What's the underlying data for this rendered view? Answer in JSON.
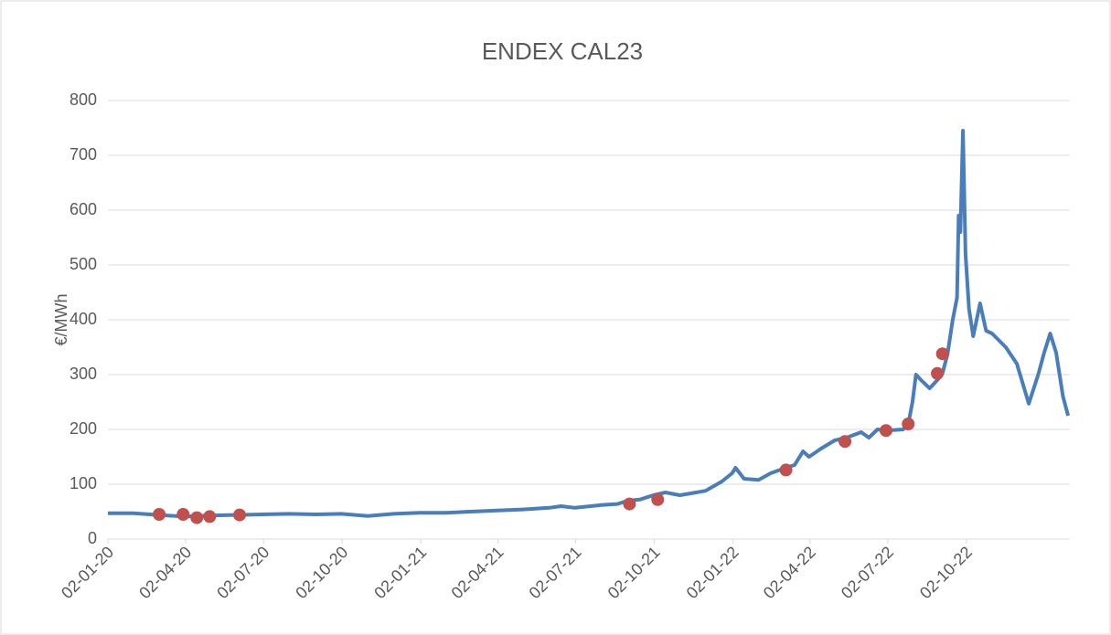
{
  "chart_data": {
    "type": "line",
    "title": "ENDEX CAL23",
    "y_label": "€/MWh",
    "xlim": [
      "2020-01-02",
      "2023-01-31"
    ],
    "xticks": [
      {
        "value": "2020-01-02",
        "label": "02-01-20"
      },
      {
        "value": "2020-04-02",
        "label": "02-04-20"
      },
      {
        "value": "2020-07-02",
        "label": "02-07-20"
      },
      {
        "value": "2020-10-02",
        "label": "02-10-20"
      },
      {
        "value": "2021-01-02",
        "label": "02-01-21"
      },
      {
        "value": "2021-04-02",
        "label": "02-04-21"
      },
      {
        "value": "2021-07-02",
        "label": "02-07-21"
      },
      {
        "value": "2021-10-02",
        "label": "02-10-21"
      },
      {
        "value": "2022-01-02",
        "label": "02-01-22"
      },
      {
        "value": "2022-04-02",
        "label": "02-04-22"
      },
      {
        "value": "2022-07-02",
        "label": "02-07-22"
      },
      {
        "value": "2022-10-02",
        "label": "02-10-22"
      }
    ],
    "ylim": [
      0,
      800
    ],
    "yticks": [
      0,
      100,
      200,
      300,
      400,
      500,
      600,
      700,
      800
    ],
    "grid": true,
    "series": [
      {
        "color": "#4a7ebb",
        "x": [
          "2020-01-02",
          "2020-02-01",
          "2020-03-01",
          "2020-04-01",
          "2020-05-01",
          "2020-06-01",
          "2020-07-01",
          "2020-08-01",
          "2020-09-01",
          "2020-10-01",
          "2020-11-01",
          "2020-12-01",
          "2021-01-01",
          "2021-02-01",
          "2021-03-01",
          "2021-04-01",
          "2021-05-01",
          "2021-06-01",
          "2021-06-15",
          "2021-07-01",
          "2021-08-01",
          "2021-08-20",
          "2021-09-01",
          "2021-09-15",
          "2021-10-01",
          "2021-10-15",
          "2021-11-01",
          "2021-12-01",
          "2021-12-20",
          "2022-01-01",
          "2022-01-05",
          "2022-01-15",
          "2022-02-01",
          "2022-02-15",
          "2022-03-01",
          "2022-03-15",
          "2022-03-25",
          "2022-04-01",
          "2022-04-15",
          "2022-05-01",
          "2022-05-15",
          "2022-06-01",
          "2022-06-10",
          "2022-06-20",
          "2022-06-30",
          "2022-07-20",
          "2022-07-26",
          "2022-07-31",
          "2022-08-04",
          "2022-08-10",
          "2022-08-20",
          "2022-08-29",
          "2022-09-04",
          "2022-09-10",
          "2022-09-16",
          "2022-09-21",
          "2022-09-23",
          "2022-09-25",
          "2022-09-28",
          "2022-10-01",
          "2022-10-05",
          "2022-10-10",
          "2022-10-18",
          "2022-10-25",
          "2022-11-01",
          "2022-11-17",
          "2022-11-30",
          "2022-12-14",
          "2022-12-25",
          "2023-01-01",
          "2023-01-08",
          "2023-01-15",
          "2023-01-23",
          "2023-01-29"
        ],
        "values": [
          47,
          47,
          44,
          41,
          43,
          44,
          45,
          46,
          45,
          46,
          42,
          46,
          48,
          48,
          50,
          52,
          54,
          57,
          60,
          57,
          62,
          64,
          70,
          72,
          80,
          85,
          80,
          88,
          105,
          120,
          130,
          110,
          108,
          120,
          128,
          135,
          160,
          150,
          165,
          180,
          185,
          195,
          185,
          200,
          198,
          200,
          210,
          250,
          300,
          290,
          275,
          290,
          302,
          338,
          400,
          440,
          590,
          560,
          745,
          520,
          420,
          370,
          430,
          380,
          375,
          350,
          320,
          247,
          300,
          340,
          375,
          340,
          260,
          225
        ]
      },
      {
        "color": "#c0504d",
        "marker": "dot",
        "x": [
          "2020-03-02",
          "2020-03-30",
          "2020-04-15",
          "2020-04-30",
          "2020-06-04",
          "2021-09-03",
          "2021-10-06",
          "2022-03-05",
          "2022-05-13",
          "2022-06-30",
          "2022-07-26",
          "2022-08-29",
          "2022-09-04"
        ],
        "values": [
          45,
          45,
          39,
          41,
          44,
          64,
          72,
          126,
          178,
          198,
          210,
          302,
          338
        ]
      }
    ]
  }
}
